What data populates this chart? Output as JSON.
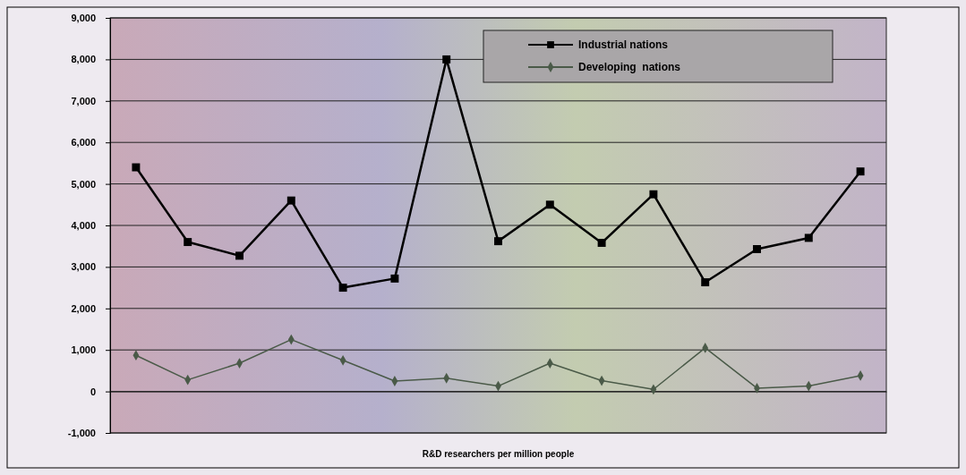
{
  "chart_data": {
    "type": "line",
    "xlabel": "R&D researchers per million people",
    "categories": [
      null,
      null,
      null,
      null,
      null,
      null,
      null,
      null,
      null,
      null,
      null,
      null,
      null,
      null,
      null
    ],
    "series": [
      {
        "name": "Industrial nations",
        "color": "#000000",
        "marker": "square",
        "values": [
          5400,
          3600,
          3270,
          4600,
          2500,
          2720,
          8000,
          3620,
          4500,
          3580,
          4750,
          2630,
          3430,
          3700,
          5300
        ]
      },
      {
        "name": "Developing  nations",
        "color": "#4a5a48",
        "marker": "diamond",
        "values": [
          870,
          280,
          680,
          1250,
          750,
          250,
          320,
          130,
          680,
          260,
          50,
          1050,
          80,
          130,
          380
        ]
      }
    ],
    "ylim": [
      -1000,
      9000
    ],
    "yticks": [
      {
        "value": -1000,
        "label": "-1,000"
      },
      0,
      {
        "value": 1000,
        "label": "1,000"
      },
      {
        "value": 2000,
        "label": "2,000"
      },
      {
        "value": 3000,
        "label": "3,000"
      },
      {
        "value": 4000,
        "label": "4,000"
      },
      {
        "value": 5000,
        "label": "5,000"
      },
      {
        "value": 6000,
        "label": "6,000"
      },
      {
        "value": 7000,
        "label": "7,000"
      },
      {
        "value": 8000,
        "label": "8,000"
      },
      {
        "value": 9000,
        "label": "9,000"
      }
    ],
    "grid": "y",
    "legend": "top right"
  }
}
